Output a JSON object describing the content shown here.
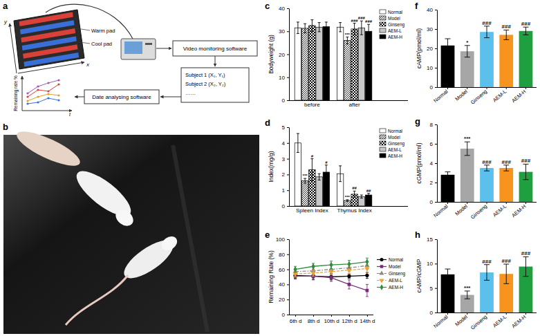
{
  "panel_labels": [
    "a",
    "b",
    "c",
    "d",
    "e",
    "f",
    "g",
    "h"
  ],
  "diagram": {
    "axis_labels": [
      "x",
      "y"
    ],
    "pad_labels": [
      "Warm pad",
      "Cool pad"
    ],
    "monitor": "Video monitoring software",
    "subjects": [
      "Subject 1  (X₁, Y₁)",
      "Subject 2  (X₂, Y₂)",
      "……"
    ],
    "analysis": "Date analysing software",
    "plot_y_label": "Remaining rate %",
    "plot_x_label": "t"
  },
  "chart_data": [
    {
      "type": "bar",
      "y_label": "Bodyweight (g)",
      "categories": [
        "before",
        "after"
      ],
      "series": [
        {
          "name": "Normal",
          "color": "#ffffff",
          "values": [
            31.5,
            31.8
          ],
          "errors": [
            2.5,
            2.0
          ]
        },
        {
          "name": "Model",
          "color": "#ffffff",
          "values": [
            31.3,
            26.0
          ],
          "errors": [
            2.0,
            1.5
          ],
          "annotations": [
            null,
            "***"
          ]
        },
        {
          "name": "Ginseng",
          "color": "#ffffff",
          "values": [
            32.5,
            31.0
          ],
          "errors": [
            2.5,
            2.5
          ],
          "annotations": [
            null,
            "###"
          ]
        },
        {
          "name": "AEM-L",
          "color": "#c8c8c8",
          "values": [
            31.8,
            31.5
          ],
          "errors": [
            2.0,
            3.0
          ],
          "annotations": [
            null,
            "###"
          ]
        },
        {
          "name": "AEM-H",
          "color": "#000000",
          "values": [
            32.0,
            30.0
          ],
          "errors": [
            2.0,
            3.0
          ],
          "annotations": [
            null,
            "###"
          ]
        }
      ],
      "ylim": [
        0,
        40
      ],
      "yticks": [
        0,
        10,
        20,
        30,
        40
      ],
      "legend": "top-right"
    },
    {
      "type": "bar",
      "y_label": "Index(mg/g)",
      "categories": [
        "Spleen Index",
        "Thymus Index"
      ],
      "series": [
        {
          "name": "Normal",
          "color": "#ffffff",
          "values": [
            4.0,
            2.05
          ],
          "errors": [
            0.6,
            0.5
          ]
        },
        {
          "name": "Model",
          "color": "#ffffff",
          "values": [
            1.6,
            0.35
          ],
          "errors": [
            0.15,
            0.05
          ],
          "annotations": [
            "***",
            "***"
          ]
        },
        {
          "name": "Ginseng",
          "color": "#ffffff",
          "values": [
            2.3,
            0.75
          ],
          "errors": [
            0.7,
            0.2
          ],
          "annotations": [
            "#",
            "##"
          ]
        },
        {
          "name": "AEM-L",
          "color": "#c8c8c8",
          "values": [
            1.85,
            0.6
          ],
          "errors": [
            0.2,
            0.1
          ]
        },
        {
          "name": "AEM-H",
          "color": "#000000",
          "values": [
            2.15,
            0.7
          ],
          "errors": [
            0.45,
            0.1
          ],
          "annotations": [
            "#",
            "##"
          ]
        }
      ],
      "ylim": [
        0,
        5
      ],
      "yticks": [
        0,
        1,
        2,
        3,
        4,
        5
      ],
      "legend": "top-right"
    },
    {
      "type": "line",
      "y_label": "Remaining Rate (%)",
      "categories": [
        "6th d",
        "8th d",
        "10th d",
        "12th d",
        "14th d"
      ],
      "series": [
        {
          "name": "Normal",
          "color": "#000000",
          "marker": "circle",
          "line_style": "solid",
          "values": [
            52,
            51,
            50,
            51,
            52
          ],
          "errors": [
            4,
            4,
            4,
            3,
            4
          ]
        },
        {
          "name": "Model",
          "color": "#7b2a7b",
          "marker": "square",
          "line_style": "solid",
          "values": [
            51,
            51,
            49,
            40,
            32
          ],
          "errors": [
            4,
            5,
            5,
            6,
            8
          ]
        },
        {
          "name": "Ginseng",
          "color": "#888888",
          "marker": "triangle",
          "line_style": "dashdot",
          "values": [
            57,
            58,
            60,
            62,
            65
          ],
          "errors": [
            4,
            4,
            5,
            5,
            5
          ]
        },
        {
          "name": "AEM-L",
          "color": "#f0a030",
          "marker": "triangle-down",
          "line_style": "dashed",
          "values": [
            54,
            55,
            57,
            59,
            61
          ],
          "errors": [
            4,
            4,
            4,
            5,
            5
          ]
        },
        {
          "name": "AEM-H",
          "color": "#2e8b3a",
          "marker": "diamond",
          "line_style": "solid",
          "values": [
            60,
            64,
            66,
            67,
            70
          ],
          "errors": [
            4,
            4,
            5,
            5,
            5
          ]
        }
      ],
      "ylim": [
        0,
        100
      ],
      "yticks": [
        0,
        20,
        40,
        60,
        80,
        100
      ],
      "legend": "right"
    },
    {
      "type": "bar",
      "y_label": "cAMP(pmol/ml)",
      "categories": [
        "Normal",
        "Model",
        "Ginseng",
        "AEM-L",
        "AEM-H"
      ],
      "values": [
        21.5,
        18.5,
        28.5,
        27.0,
        29.0
      ],
      "errors": [
        3.5,
        3.0,
        3.0,
        2.5,
        2.0
      ],
      "annotations": [
        null,
        "*",
        "###",
        "###",
        "###"
      ],
      "colors": [
        "#000000",
        "#a6a6a6",
        "#5bc0eb",
        "#f7941d",
        "#1fa040"
      ],
      "ylim": [
        0,
        40
      ],
      "yticks": [
        0,
        10,
        20,
        30,
        40
      ]
    },
    {
      "type": "bar",
      "y_label": "cGMP(pmol/ml)",
      "categories": [
        "Normal",
        "Model",
        "Ginseng",
        "AEM-L",
        "AEM-H"
      ],
      "values": [
        2.8,
        5.5,
        3.5,
        3.5,
        3.1
      ],
      "errors": [
        0.3,
        0.7,
        0.3,
        0.3,
        0.8
      ],
      "annotations": [
        null,
        "***",
        "###",
        "###",
        "###"
      ],
      "colors": [
        "#000000",
        "#a6a6a6",
        "#5bc0eb",
        "#f7941d",
        "#1fa040"
      ],
      "ylim": [
        0,
        8
      ],
      "yticks": [
        0,
        2,
        4,
        6,
        8
      ]
    },
    {
      "type": "bar",
      "y_label": "cAMP/cGMP",
      "categories": [
        "Normal",
        "Model",
        "Ginseng",
        "AEM-L",
        "AEM-H"
      ],
      "values": [
        7.8,
        3.6,
        8.2,
        7.9,
        9.4
      ],
      "errors": [
        1.1,
        0.8,
        1.6,
        2.0,
        2.0
      ],
      "annotations": [
        null,
        "***",
        "###",
        "###",
        "###"
      ],
      "colors": [
        "#000000",
        "#a6a6a6",
        "#5bc0eb",
        "#f7941d",
        "#1fa040"
      ],
      "ylim": [
        0,
        15
      ],
      "yticks": [
        0,
        5,
        10,
        15
      ]
    }
  ]
}
